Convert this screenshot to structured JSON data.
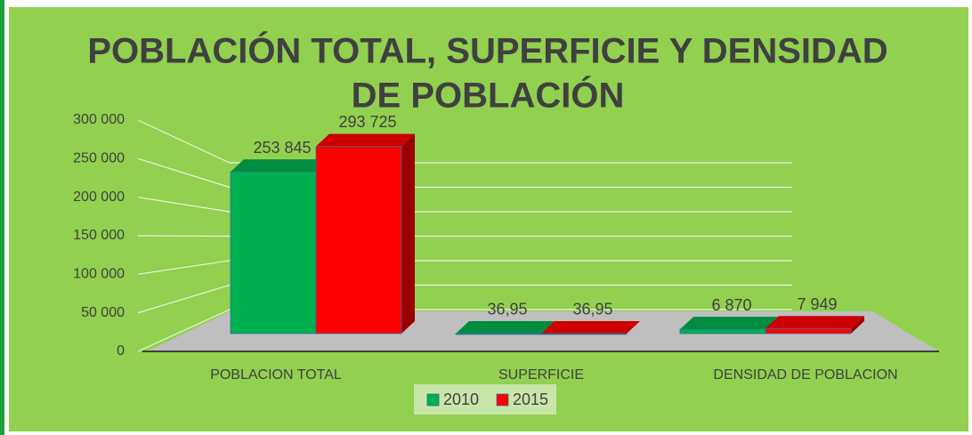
{
  "chart_data": {
    "type": "bar3d",
    "title": [
      "POBLACIÓN TOTAL, SUPERFICIE Y DENSIDAD",
      "DE POBLACIÓN"
    ],
    "categories": [
      "POBLACION TOTAL",
      "SUPERFICIE",
      "DENSIDAD DE POBLACION"
    ],
    "series": [
      {
        "name": "2010",
        "color": "#00b050",
        "values": [
          253845,
          36.95,
          6870
        ],
        "value_labels": [
          "253 845",
          "36,95",
          "6 870"
        ]
      },
      {
        "name": "2015",
        "color": "#ff0000",
        "values": [
          293725,
          36.95,
          7949
        ],
        "value_labels": [
          "293 725",
          "36,95",
          "7 949"
        ]
      }
    ],
    "ylim": [
      0,
      300000
    ],
    "yticks": [
      0,
      {
        "value": 50000,
        "label": "50 000"
      },
      {
        "value": 100000,
        "label": "100 000"
      },
      {
        "value": 150000,
        "label": "150 000"
      },
      {
        "value": 200000,
        "label": "200 000"
      },
      {
        "value": 250000,
        "label": "250 000"
      },
      {
        "value": 300000,
        "label": "300 000"
      }
    ],
    "grid": true,
    "legend": "bottom"
  }
}
